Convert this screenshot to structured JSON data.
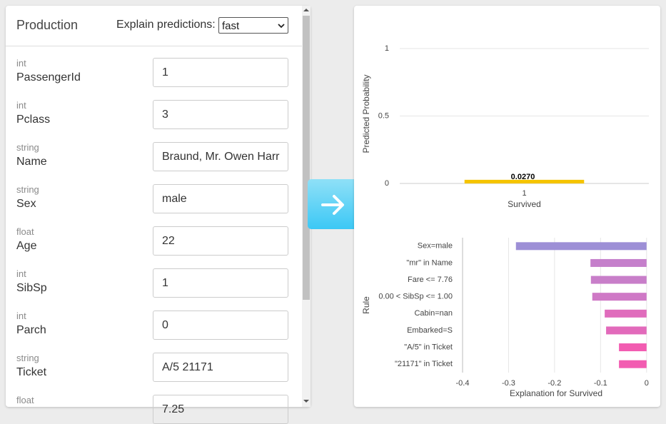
{
  "form": {
    "title": "Production",
    "explain_label": "Explain predictions:",
    "explain_mode": "fast",
    "fields": [
      {
        "type": "int",
        "name": "PassengerId",
        "value": "1"
      },
      {
        "type": "int",
        "name": "Pclass",
        "value": "3"
      },
      {
        "type": "string",
        "name": "Name",
        "value": "Braund, Mr. Owen Harr"
      },
      {
        "type": "string",
        "name": "Sex",
        "value": "male"
      },
      {
        "type": "float",
        "name": "Age",
        "value": "22"
      },
      {
        "type": "int",
        "name": "SibSp",
        "value": "1"
      },
      {
        "type": "int",
        "name": "Parch",
        "value": "0"
      },
      {
        "type": "string",
        "name": "Ticket",
        "value": "A/5 21171"
      },
      {
        "type": "float",
        "value": "7.25"
      }
    ]
  },
  "chart_data": [
    {
      "type": "bar",
      "y_label": "Predicted Probability",
      "x_label": "Survived",
      "categories": [
        "1"
      ],
      "values": [
        0.027
      ],
      "value_labels": [
        "0.0270"
      ],
      "color": "#f5c400",
      "ylim": [
        0,
        1
      ],
      "yticks": [
        0,
        0.5,
        1
      ],
      "grid": true
    },
    {
      "type": "barh",
      "y_label": "Rule",
      "x_label": "Explanation for Survived",
      "categories": [
        "Sex=male",
        "\"mr\" in Name",
        "Fare <= 7.76",
        "0.00 < SibSp <= 1.00",
        "Cabin=nan",
        "Embarked=S",
        "\"A/5\" in Ticket",
        "\"21171\" in Ticket"
      ],
      "values": [
        -0.284,
        -0.122,
        -0.121,
        -0.118,
        -0.091,
        -0.088,
        -0.06,
        -0.06
      ],
      "colors": [
        "#9d8fd6",
        "#c57fcb",
        "#c87ec9",
        "#cf79c6",
        "#e06cbc",
        "#e26abb",
        "#f25cb1",
        "#f25cb1"
      ],
      "xlim": [
        -0.4,
        0.005
      ],
      "xticks": [
        -0.4,
        -0.3,
        -0.2,
        -0.1,
        0
      ],
      "grid": true
    }
  ]
}
